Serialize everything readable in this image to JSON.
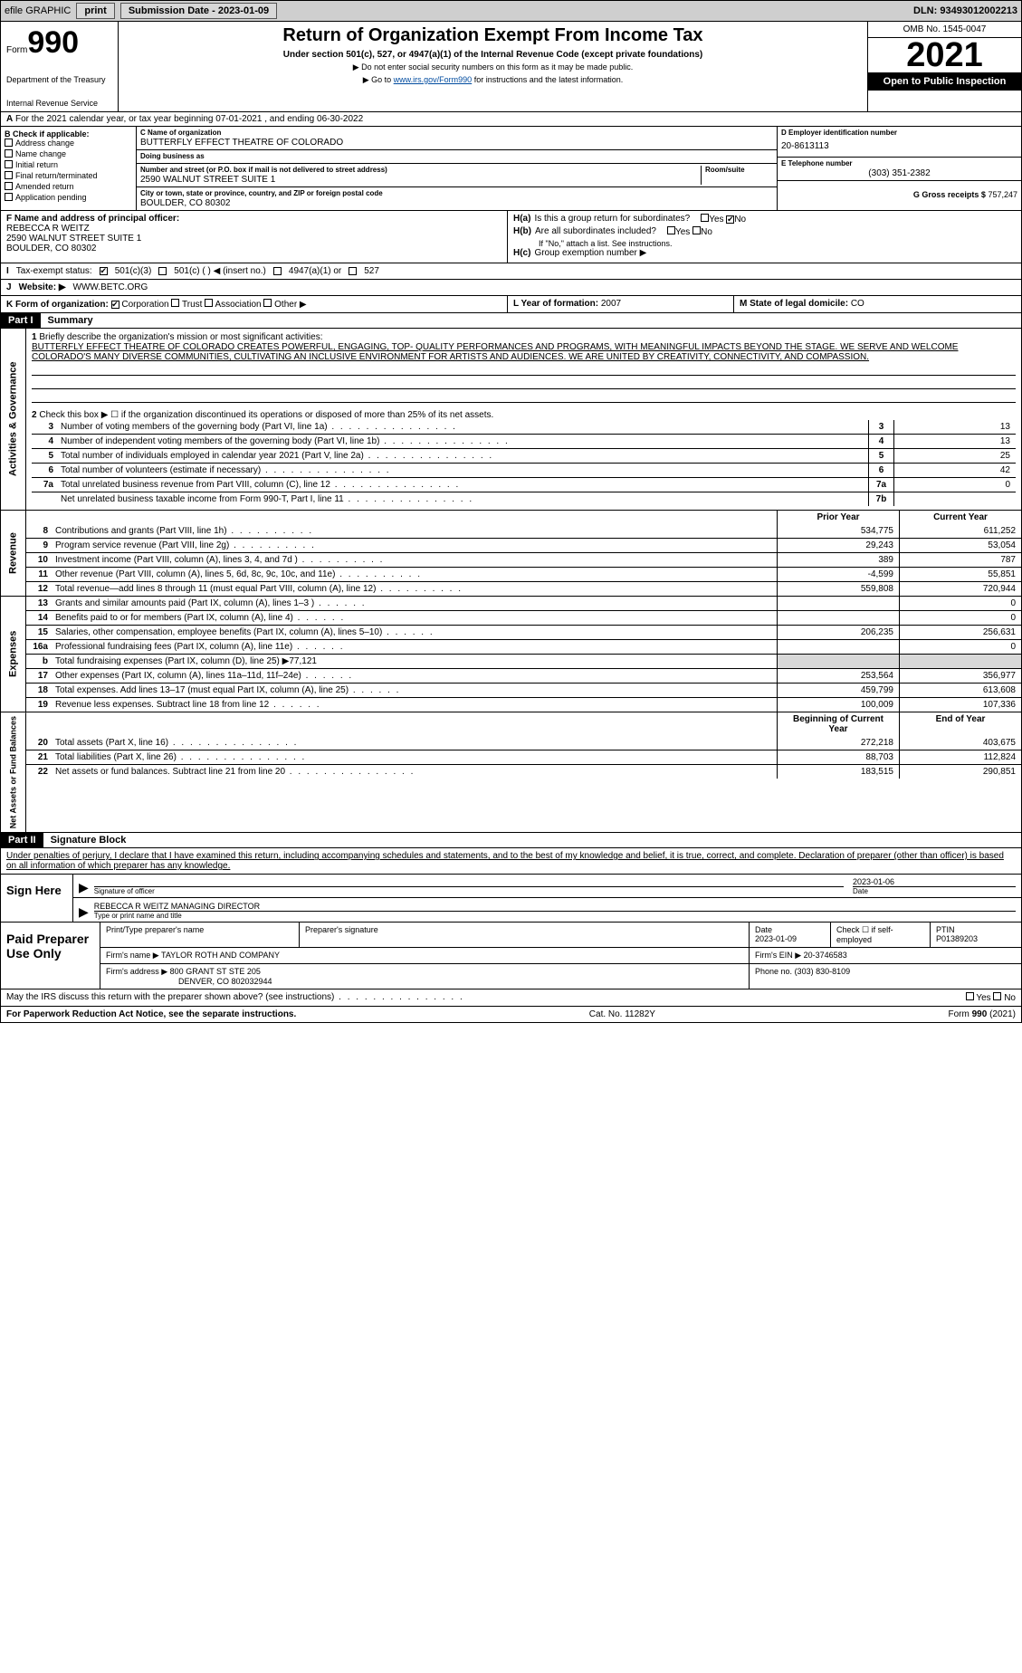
{
  "topbar": {
    "efile": "efile GRAPHIC",
    "print": "print",
    "sub_label": "Submission Date - 2023-01-09",
    "dln": "DLN: 93493012002213"
  },
  "header": {
    "form_word": "Form",
    "form_num": "990",
    "dept": "Department of the Treasury",
    "irs": "Internal Revenue Service",
    "title": "Return of Organization Exempt From Income Tax",
    "subtitle": "Under section 501(c), 527, or 4947(a)(1) of the Internal Revenue Code (except private foundations)",
    "note1": "▶ Do not enter social security numbers on this form as it may be made public.",
    "note2_pre": "▶ Go to ",
    "note2_link": "www.irs.gov/Form990",
    "note2_post": " for instructions and the latest information.",
    "omb": "OMB No. 1545-0047",
    "year": "2021",
    "open_pub": "Open to Public Inspection"
  },
  "a": {
    "cal_year": "For the 2021 calendar year, or tax year beginning 07-01-2021    , and ending 06-30-2022"
  },
  "b": {
    "header": "B Check if applicable:",
    "addr": "Address change",
    "name": "Name change",
    "initial": "Initial return",
    "final": "Final return/terminated",
    "amended": "Amended return",
    "app": "Application pending"
  },
  "c": {
    "name_lbl": "C Name of organization",
    "name": "BUTTERFLY EFFECT THEATRE OF COLORADO",
    "dba_lbl": "Doing business as",
    "dba": "",
    "street_lbl": "Number and street (or P.O. box if mail is not delivered to street address)",
    "room_lbl": "Room/suite",
    "street": "2590 WALNUT STREET SUITE 1",
    "city_lbl": "City or town, state or province, country, and ZIP or foreign postal code",
    "city": "BOULDER, CO  80302"
  },
  "d": {
    "lbl": "D Employer identification number",
    "val": "20-8613113"
  },
  "e": {
    "lbl": "E Telephone number",
    "val": "(303) 351-2382"
  },
  "g": {
    "lbl": "G Gross receipts $",
    "val": "757,247"
  },
  "f": {
    "lbl": "F  Name and address of principal officer:",
    "name": "REBECCA R WEITZ",
    "street": "2590 WALNUT STREET SUITE 1",
    "city": "BOULDER, CO  80302"
  },
  "h": {
    "a_lbl": "H(a)  Is this a group return for subordinates?",
    "b_lbl": "H(b)  Are all subordinates included?",
    "b_note": "If \"No,\" attach a list. See instructions.",
    "c_lbl": "H(c)  Group exemption number ▶",
    "yes": "Yes",
    "no": "No"
  },
  "i": {
    "lbl": "Tax-exempt status:",
    "opt1": "501(c)(3)",
    "opt2": "501(c) (   ) ◀ (insert no.)",
    "opt3": "4947(a)(1) or",
    "opt4": "527"
  },
  "j": {
    "lbl": "Website: ▶",
    "val": "WWW.BETC.ORG"
  },
  "k": {
    "lbl": "K Form of organization:",
    "corp": "Corporation",
    "trust": "Trust",
    "assoc": "Association",
    "other": "Other ▶"
  },
  "l": {
    "lbl": "L Year of formation:",
    "val": "2007"
  },
  "m": {
    "lbl": "M State of legal domicile:",
    "val": "CO"
  },
  "part1": {
    "hdr": "Part I",
    "title": "Summary"
  },
  "summary": {
    "line1_lbl": "Briefly describe the organization's mission or most significant activities:",
    "line1": "BUTTERFLY EFFECT THEATRE OF COLORADO CREATES POWERFUL, ENGAGING, TOP- QUALITY PERFORMANCES AND PROGRAMS, WITH MEANINGFUL IMPACTS BEYOND THE STAGE. WE SERVE AND WELCOME COLORADO'S MANY DIVERSE COMMUNITIES, CULTIVATING AN INCLUSIVE ENVIRONMENT FOR ARTISTS AND AUDIENCES. WE ARE UNITED BY CREATIVITY, CONNECTIVITY, AND COMPASSION.",
    "line2": "Check this box ▶ ☐  if the organization discontinued its operations or disposed of more than 25% of its net assets.",
    "rows": [
      {
        "n": "3",
        "d": "Number of voting members of the governing body (Part VI, line 1a)",
        "box": "3",
        "v": "13"
      },
      {
        "n": "4",
        "d": "Number of independent voting members of the governing body (Part VI, line 1b)",
        "box": "4",
        "v": "13"
      },
      {
        "n": "5",
        "d": "Total number of individuals employed in calendar year 2021 (Part V, line 2a)",
        "box": "5",
        "v": "25"
      },
      {
        "n": "6",
        "d": "Total number of volunteers (estimate if necessary)",
        "box": "6",
        "v": "42"
      },
      {
        "n": "7a",
        "d": "Total unrelated business revenue from Part VIII, column (C), line 12",
        "box": "7a",
        "v": "0"
      },
      {
        "n": "",
        "d": "Net unrelated business taxable income from Form 990-T, Part I, line 11",
        "box": "7b",
        "v": ""
      }
    ],
    "hdr_prior": "Prior Year",
    "hdr_curr": "Current Year",
    "rev": [
      {
        "n": "8",
        "d": "Contributions and grants (Part VIII, line 1h)",
        "p": "534,775",
        "c": "611,252"
      },
      {
        "n": "9",
        "d": "Program service revenue (Part VIII, line 2g)",
        "p": "29,243",
        "c": "53,054"
      },
      {
        "n": "10",
        "d": "Investment income (Part VIII, column (A), lines 3, 4, and 7d )",
        "p": "389",
        "c": "787"
      },
      {
        "n": "11",
        "d": "Other revenue (Part VIII, column (A), lines 5, 6d, 8c, 9c, 10c, and 11e)",
        "p": "-4,599",
        "c": "55,851"
      },
      {
        "n": "12",
        "d": "Total revenue—add lines 8 through 11 (must equal Part VIII, column (A), line 12)",
        "p": "559,808",
        "c": "720,944"
      }
    ],
    "exp": [
      {
        "n": "13",
        "d": "Grants and similar amounts paid (Part IX, column (A), lines 1–3 )",
        "p": "",
        "c": "0"
      },
      {
        "n": "14",
        "d": "Benefits paid to or for members (Part IX, column (A), line 4)",
        "p": "",
        "c": "0"
      },
      {
        "n": "15",
        "d": "Salaries, other compensation, employee benefits (Part IX, column (A), lines 5–10)",
        "p": "206,235",
        "c": "256,631"
      },
      {
        "n": "16a",
        "d": "Professional fundraising fees (Part IX, column (A), line 11e)",
        "p": "",
        "c": "0"
      },
      {
        "n": "b",
        "d": "Total fundraising expenses (Part IX, column (D), line 25) ▶77,121",
        "grey": true
      },
      {
        "n": "17",
        "d": "Other expenses (Part IX, column (A), lines 11a–11d, 11f–24e)",
        "p": "253,564",
        "c": "356,977"
      },
      {
        "n": "18",
        "d": "Total expenses. Add lines 13–17 (must equal Part IX, column (A), line 25)",
        "p": "459,799",
        "c": "613,608"
      },
      {
        "n": "19",
        "d": "Revenue less expenses. Subtract line 18 from line 12",
        "p": "100,009",
        "c": "107,336"
      }
    ],
    "hdr_begin": "Beginning of Current Year",
    "hdr_end": "End of Year",
    "net": [
      {
        "n": "20",
        "d": "Total assets (Part X, line 16)",
        "p": "272,218",
        "c": "403,675"
      },
      {
        "n": "21",
        "d": "Total liabilities (Part X, line 26)",
        "p": "88,703",
        "c": "112,824"
      },
      {
        "n": "22",
        "d": "Net assets or fund balances. Subtract line 21 from line 20",
        "p": "183,515",
        "c": "290,851"
      }
    ],
    "side_ag": "Activities & Governance",
    "side_rev": "Revenue",
    "side_exp": "Expenses",
    "side_net": "Net Assets or Fund Balances"
  },
  "part2": {
    "hdr": "Part II",
    "title": "Signature Block"
  },
  "sig": {
    "penalty": "Under penalties of perjury, I declare that I have examined this return, including accompanying schedules and statements, and to the best of my knowledge and belief, it is true, correct, and complete. Declaration of preparer (other than officer) is based on all information of which preparer has any knowledge.",
    "sign_here": "Sign Here",
    "sig_officer": "Signature of officer",
    "date": "Date",
    "date_val": "2023-01-06",
    "name_title": "REBECCA R WEITZ  MANAGING DIRECTOR",
    "type_name": "Type or print name and title"
  },
  "prep": {
    "title": "Paid Preparer Use Only",
    "print_lbl": "Print/Type preparer's name",
    "sig_lbl": "Preparer's signature",
    "date_lbl": "Date",
    "date_val": "2023-01-09",
    "chk_lbl": "Check ☐ if self-employed",
    "ptin_lbl": "PTIN",
    "ptin": "P01389203",
    "firm_name_lbl": "Firm's name    ▶",
    "firm_name": "TAYLOR ROTH AND COMPANY",
    "firm_ein_lbl": "Firm's EIN ▶",
    "firm_ein": "20-3746583",
    "firm_addr_lbl": "Firm's address ▶",
    "firm_addr1": "800 GRANT ST STE 205",
    "firm_addr2": "DENVER, CO  802032944",
    "phone_lbl": "Phone no.",
    "phone": "(303) 830-8109"
  },
  "may_discuss": "May the IRS discuss this return with the preparer shown above? (see instructions)",
  "footer": {
    "pra": "For Paperwork Reduction Act Notice, see the separate instructions.",
    "cat": "Cat. No. 11282Y",
    "form": "Form 990 (2021)"
  }
}
